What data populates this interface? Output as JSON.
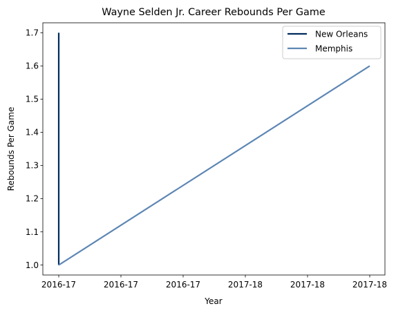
{
  "chart_data": {
    "type": "line",
    "title": "Wayne Selden Jr. Career Rebounds Per Game",
    "xlabel": "Year",
    "ylabel": "Rebounds Per Game",
    "x_tick_labels": [
      "2016-17",
      "2016-17",
      "2016-17",
      "2017-18",
      "2017-18",
      "2017-18"
    ],
    "ylim": [
      0.97,
      1.73
    ],
    "y_ticks": [
      1.0,
      1.1,
      1.2,
      1.3,
      1.4,
      1.5,
      1.6,
      1.7
    ],
    "grid": false,
    "legend_position": "top-right",
    "series": [
      {
        "name": "New Orleans",
        "color": "#002B5C",
        "points": [
          {
            "x": "2016-17",
            "y": 1.7
          },
          {
            "x": "2016-17",
            "y": 1.0
          }
        ]
      },
      {
        "name": "Memphis",
        "color": "#5D86B4",
        "points": [
          {
            "x": "2016-17",
            "y": 1.0
          },
          {
            "x": "2017-18",
            "y": 1.6
          }
        ]
      }
    ]
  }
}
